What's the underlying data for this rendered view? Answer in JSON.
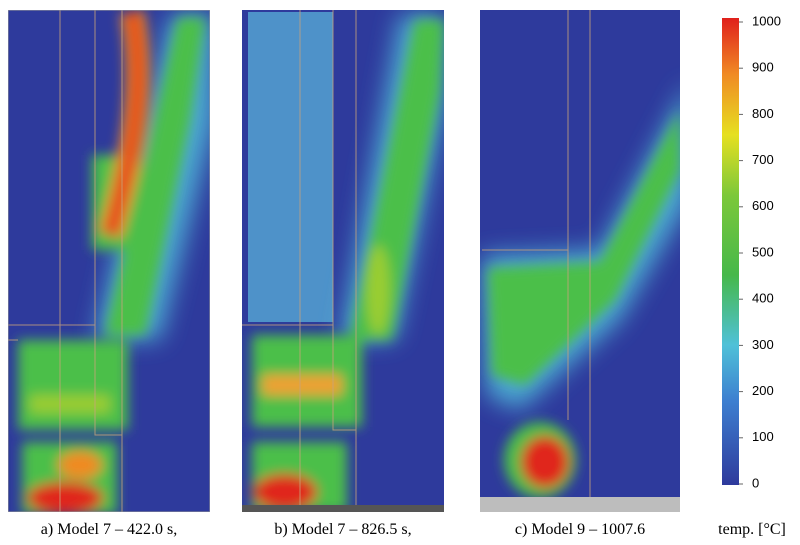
{
  "panels": [
    {
      "caption": "a) Model 7 – 422.0 s,"
    },
    {
      "caption": "b) Model 7 – 826.5 s,"
    },
    {
      "caption": "c) Model 9 – 1007.6"
    }
  ],
  "colorbar": {
    "label": "temp. [°C]",
    "lim": [
      0,
      1000
    ],
    "ticks": [
      0,
      100,
      200,
      300,
      400,
      500,
      600,
      700,
      800,
      900,
      1000
    ]
  }
}
